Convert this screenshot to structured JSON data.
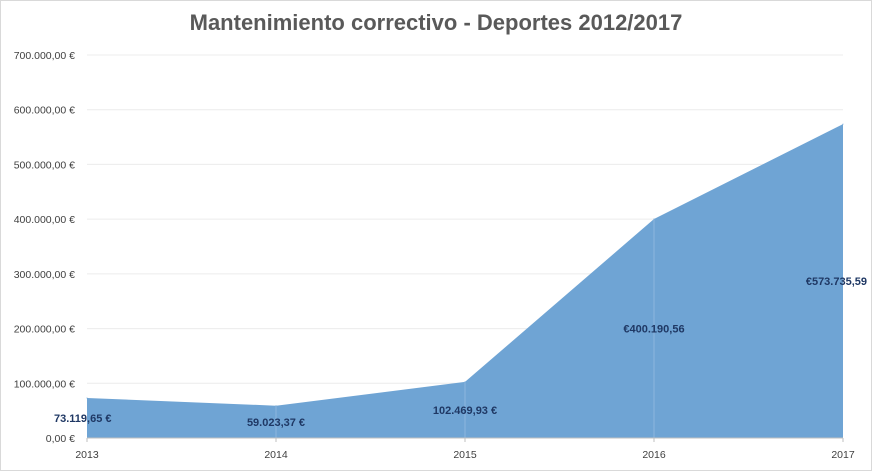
{
  "chart_data": {
    "type": "area",
    "title": "Mantenimiento correctivo - Deportes 2012/2017",
    "xlabel": "",
    "ylabel": "",
    "categories": [
      "2013",
      "2014",
      "2015",
      "2016",
      "2017"
    ],
    "series": [
      {
        "values": [
          73119.65,
          59023.37,
          102469.93,
          400190.56,
          573735.59
        ],
        "data_labels": [
          "73.119,65 €",
          "59.023,37 €",
          "102.469,93 €",
          "€400.190,56",
          "€573.735,59"
        ],
        "color": "#6fa4d4"
      }
    ],
    "ylim": [
      0,
      700000
    ],
    "yticks": [
      0,
      100000,
      200000,
      300000,
      400000,
      500000,
      600000,
      700000
    ],
    "ytick_labels": [
      "0,00 €",
      "100.000,00 €",
      "200.000,00 €",
      "300.000,00 €",
      "400.000,00 €",
      "500.000,00 €",
      "600.000,00 €",
      "700.000,00 €"
    ],
    "grid": true,
    "legend": "none"
  }
}
